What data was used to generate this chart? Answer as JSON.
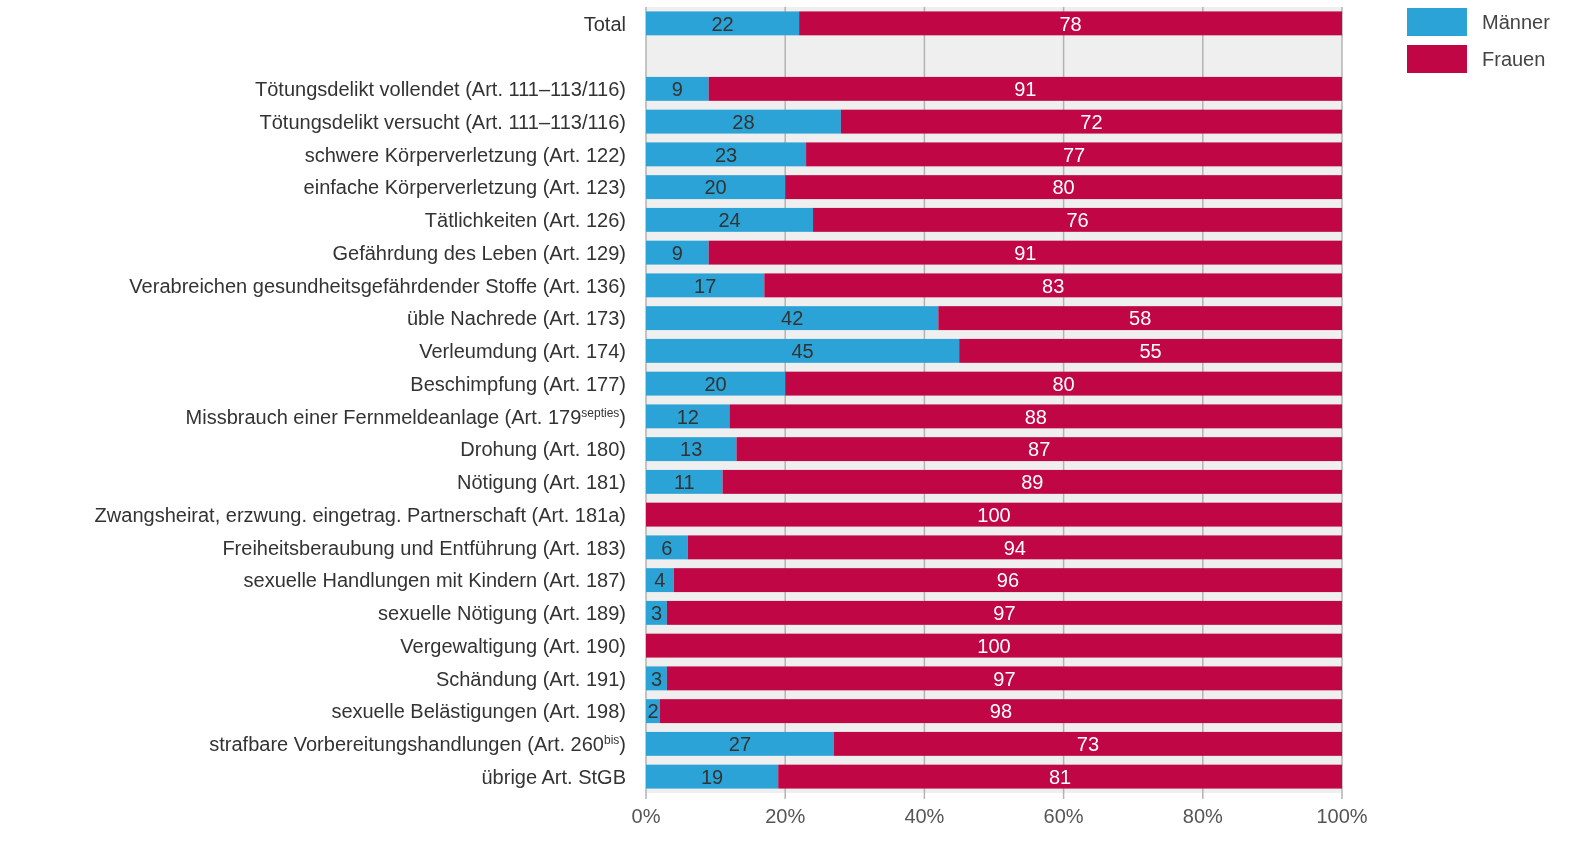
{
  "chart_data": {
    "type": "bar",
    "orientation": "horizontal",
    "stacked": true,
    "categories": [
      "Total",
      null,
      "Tötungsdelikt vollendet (Art. 111–113/116)",
      "Tötungsdelikt versucht (Art. 111–113/116)",
      "schwere Körperverletzung (Art. 122)",
      "einfache Körperverletzung (Art. 123)",
      "Tätlichkeiten (Art. 126)",
      "Gefährdung des Leben (Art. 129)",
      "Verabreichen gesundheitsgefährdender Stoffe (Art. 136)",
      "üble Nachrede (Art. 173)",
      "Verleumdung (Art. 174)",
      "Beschimpfung (Art. 177)",
      "Missbrauch einer Fernmeldeanlage (Art. 179$^{septies}$)",
      "Drohung (Art. 180)",
      "Nötigung (Art. 181)",
      "Zwangsheirat, erzwung. eingetrag. Partnerschaft (Art. 181a)",
      "Freiheitsberaubung und Entführung (Art. 183)",
      "sexuelle Handlungen mit Kindern (Art. 187)",
      "sexuelle Nötigung (Art. 189)",
      "Vergewaltigung (Art. 190)",
      "Schändung (Art. 191)",
      "sexuelle Belästigungen (Art. 198)",
      "strafbare Vorbereitungshandlungen (Art. 260$^{bis}$)",
      "übrige Art. StGB"
    ],
    "series": [
      {
        "name": "Männer",
        "color": "#2ba3d6",
        "values": [
          22,
          null,
          9,
          28,
          23,
          20,
          24,
          9,
          17,
          42,
          45,
          20,
          12,
          13,
          11,
          0,
          6,
          4,
          3,
          0,
          3,
          2,
          27,
          19
        ],
        "value_labels": [
          "22",
          null,
          "9",
          "28",
          "23",
          "20",
          "24",
          "9",
          "17",
          "42",
          "45",
          "20",
          "12",
          "13",
          "11",
          null,
          "6",
          "4",
          "3",
          null,
          "3",
          "2",
          "27",
          "19"
        ]
      },
      {
        "name": "Frauen",
        "color": "#c00645",
        "values": [
          78,
          null,
          91,
          72,
          77,
          80,
          76,
          91,
          83,
          58,
          55,
          80,
          88,
          87,
          89,
          100,
          94,
          96,
          97,
          100,
          97,
          98,
          73,
          81
        ],
        "value_labels": [
          "78",
          null,
          "91",
          "72",
          "77",
          "80",
          "76",
          "91",
          "83",
          "58",
          "55",
          "80",
          "88",
          "87",
          "89",
          "100",
          "94",
          "96",
          "97",
          "100",
          "97",
          "98",
          "73",
          "81"
        ]
      }
    ],
    "xlim": [
      0,
      100
    ],
    "xticks": [
      {
        "value": 0,
        "label": "0%"
      },
      {
        "value": 20,
        "label": "20%"
      },
      {
        "value": 40,
        "label": "40%"
      },
      {
        "value": 60,
        "label": "60%"
      },
      {
        "value": 80,
        "label": "80%"
      },
      {
        "value": 100,
        "label": "100%"
      }
    ],
    "grid": "x",
    "legend": "top right"
  }
}
